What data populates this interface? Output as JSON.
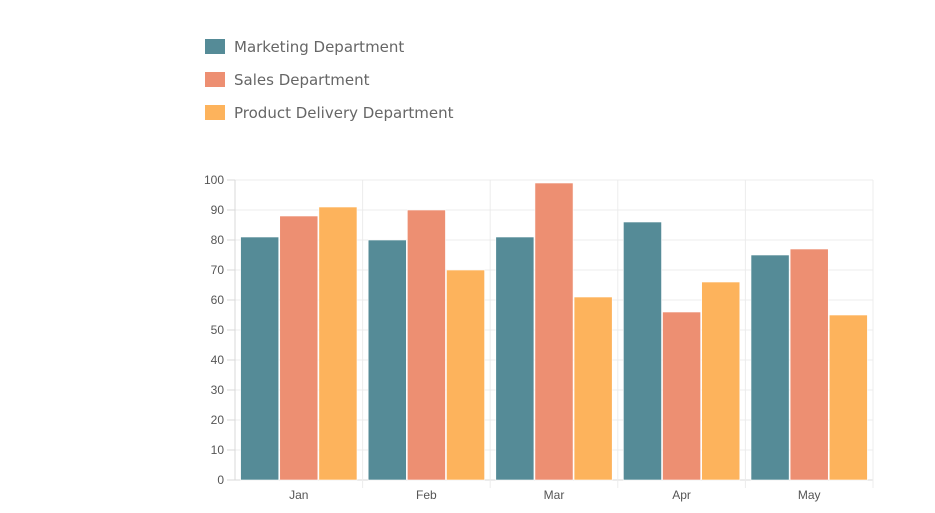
{
  "chart_data": {
    "type": "bar",
    "categories": [
      "Jan",
      "Feb",
      "Mar",
      "Apr",
      "May"
    ],
    "series": [
      {
        "name": "Marketing Department",
        "color": "#558b97",
        "values": [
          81,
          80,
          81,
          86,
          75
        ]
      },
      {
        "name": "Sales Department",
        "color": "#ed8f72",
        "values": [
          88,
          90,
          99,
          56,
          77
        ]
      },
      {
        "name": "Product Delivery Department",
        "color": "#fdb35c",
        "values": [
          91,
          70,
          61,
          66,
          55
        ]
      }
    ],
    "ylim": [
      0,
      100
    ],
    "yticks": [
      "0",
      "10",
      "20",
      "30",
      "40",
      "50",
      "60",
      "70",
      "80",
      "90",
      "100"
    ],
    "grid": true,
    "legend_position": "top-left"
  }
}
